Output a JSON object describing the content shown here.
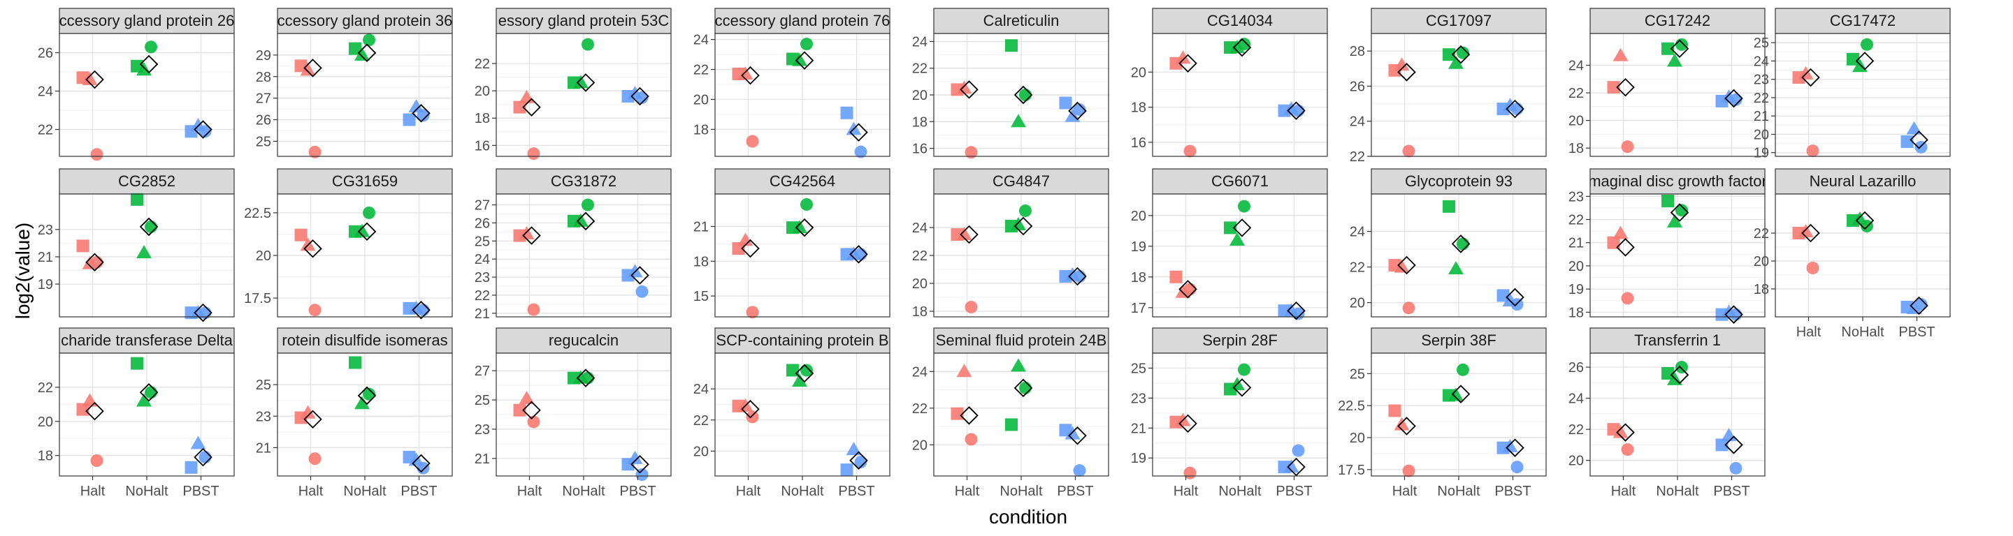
{
  "chart_data": {
    "type": "scatter",
    "xlabel": "condition",
    "ylabel": "log2(value)",
    "categories": [
      "Halt",
      "NoHalt",
      "PBST"
    ],
    "colors": {
      "Halt": "#F8766D",
      "NoHalt": "#00BA38",
      "PBST": "#619CFF"
    },
    "facets": [
      {
        "title": "ccessory gland protein 26",
        "yticks": [
          22,
          24,
          26
        ],
        "ylim": [
          20.6,
          27.0
        ],
        "points": {
          "Halt": [
            24.7,
            24.6,
            20.7
          ],
          "NoHalt": [
            25.3,
            25.1,
            26.3
          ],
          "PBST": [
            21.9,
            22.2,
            21.9
          ]
        },
        "means": [
          24.6,
          25.4,
          22.0
        ]
      },
      {
        "title": "ccessory gland protein 36",
        "yticks": [
          25,
          26,
          27,
          28,
          29
        ],
        "ylim": [
          24.3,
          30.0
        ],
        "points": {
          "Halt": [
            28.5,
            28.3,
            24.5
          ],
          "NoHalt": [
            29.3,
            29.0,
            29.7
          ],
          "PBST": [
            26.0,
            26.6,
            26.2
          ]
        },
        "means": [
          28.4,
          29.1,
          26.3
        ]
      },
      {
        "title": "essory gland protein 53C",
        "yticks": [
          16,
          18,
          20,
          22
        ],
        "ylim": [
          15.2,
          24.2
        ],
        "points": {
          "Halt": [
            18.8,
            19.5,
            15.4
          ],
          "NoHalt": [
            20.6,
            20.6,
            23.4
          ],
          "PBST": [
            19.6,
            19.8,
            19.5
          ]
        },
        "means": [
          18.8,
          20.6,
          19.6
        ]
      },
      {
        "title": "ccessory gland protein 76",
        "yticks": [
          18,
          20,
          22,
          24
        ],
        "ylim": [
          16.2,
          24.4
        ],
        "points": {
          "Halt": [
            21.7,
            21.7,
            17.2
          ],
          "NoHalt": [
            22.7,
            22.6,
            23.7
          ],
          "PBST": [
            19.1,
            18.0,
            16.5
          ]
        },
        "means": [
          21.6,
          22.6,
          17.8
        ]
      },
      {
        "title": "Calreticulin",
        "yticks": [
          16,
          18,
          20,
          22,
          24
        ],
        "ylim": [
          15.4,
          24.6
        ],
        "points": {
          "Halt": [
            20.4,
            20.5,
            15.7
          ],
          "NoHalt": [
            23.7,
            18.0,
            20.0
          ],
          "PBST": [
            19.4,
            18.4,
            18.9
          ]
        },
        "means": [
          20.4,
          20.0,
          18.8
        ]
      },
      {
        "title": "CG14034",
        "yticks": [
          16,
          18,
          20
        ],
        "ylim": [
          15.2,
          22.2
        ],
        "points": {
          "Halt": [
            20.5,
            20.8,
            15.5
          ],
          "NoHalt": [
            21.4,
            21.4,
            21.6
          ],
          "PBST": [
            17.8,
            17.9,
            17.8
          ]
        },
        "means": [
          20.5,
          21.4,
          17.8
        ]
      },
      {
        "title": "CG17097",
        "yticks": [
          22,
          24,
          26,
          28
        ],
        "ylim": [
          22.0,
          29.0
        ],
        "points": {
          "Halt": [
            26.9,
            27.2,
            22.3
          ],
          "NoHalt": [
            27.8,
            27.3,
            27.9
          ],
          "PBST": [
            24.7,
            24.9,
            24.7
          ]
        },
        "means": [
          26.8,
          27.8,
          24.7
        ]
      },
      {
        "title": "CG17242",
        "yticks": [
          18,
          20,
          22,
          24
        ],
        "ylim": [
          17.4,
          26.3
        ],
        "points": {
          "Halt": [
            22.4,
            24.7,
            18.1
          ],
          "NoHalt": [
            25.2,
            24.3,
            25.5
          ],
          "PBST": [
            21.4,
            21.7,
            21.5
          ]
        },
        "means": [
          22.4,
          25.2,
          21.6
        ]
      },
      {
        "title": "CG17472",
        "yticks": [
          19,
          20,
          21,
          22,
          23,
          24,
          25
        ],
        "ylim": [
          18.8,
          25.5
        ],
        "points": {
          "Halt": [
            23.1,
            23.3,
            19.1
          ],
          "NoHalt": [
            24.1,
            23.7,
            24.9
          ],
          "PBST": [
            19.6,
            20.3,
            19.3
          ]
        },
        "means": [
          23.1,
          24.0,
          19.7
        ]
      },
      {
        "title": "CG2852",
        "yticks": [
          19,
          21,
          23
        ],
        "ylim": [
          16.6,
          25.6
        ],
        "points": {
          "Halt": [
            21.8,
            20.5,
            20.6
          ],
          "NoHalt": [
            25.2,
            21.3,
            23.2
          ],
          "PBST": [
            16.9,
            16.9,
            16.9
          ]
        },
        "means": [
          20.6,
          23.2,
          16.9
        ]
      },
      {
        "title": "CG31659",
        "yticks": [
          17.5,
          20.0,
          22.5
        ],
        "ylim": [
          16.4,
          23.6
        ],
        "points": {
          "Halt": [
            21.2,
            20.6,
            16.8
          ],
          "NoHalt": [
            21.4,
            21.4,
            22.5
          ],
          "PBST": [
            16.9,
            16.9,
            16.8
          ]
        },
        "means": [
          20.4,
          21.4,
          16.8
        ]
      },
      {
        "title": "CG31872",
        "yticks": [
          21,
          22,
          23,
          24,
          25,
          26,
          27
        ],
        "ylim": [
          20.8,
          27.6
        ],
        "points": {
          "Halt": [
            25.3,
            25.4,
            21.2
          ],
          "NoHalt": [
            26.1,
            26.1,
            27.0
          ],
          "PBST": [
            23.1,
            23.3,
            22.2
          ]
        },
        "means": [
          25.3,
          26.1,
          23.1
        ]
      },
      {
        "title": "CG42564",
        "yticks": [
          15,
          18,
          21
        ],
        "ylim": [
          13.2,
          23.8
        ],
        "points": {
          "Halt": [
            19.1,
            19.8,
            13.6
          ],
          "NoHalt": [
            20.9,
            20.9,
            22.9
          ],
          "PBST": [
            18.6,
            18.6,
            18.6
          ]
        },
        "means": [
          19.1,
          20.9,
          18.6
        ]
      },
      {
        "title": "CG4847",
        "yticks": [
          18,
          20,
          22,
          24
        ],
        "ylim": [
          17.6,
          26.4
        ],
        "points": {
          "Halt": [
            23.5,
            23.5,
            18.3
          ],
          "NoHalt": [
            24.1,
            24.2,
            25.2
          ],
          "PBST": [
            20.5,
            20.6,
            20.5
          ]
        },
        "means": [
          23.5,
          24.1,
          20.5
        ]
      },
      {
        "title": "CG6071",
        "yticks": [
          17,
          18,
          19,
          20
        ],
        "ylim": [
          16.7,
          20.7
        ],
        "points": {
          "Halt": [
            18.0,
            17.5,
            17.6
          ],
          "NoHalt": [
            19.6,
            19.2,
            20.3
          ],
          "PBST": [
            16.9,
            16.9,
            16.8
          ]
        },
        "means": [
          17.6,
          19.6,
          16.9
        ]
      },
      {
        "title": "Glycoprotein 93",
        "yticks": [
          20,
          22,
          24
        ],
        "ylim": [
          19.2,
          26.1
        ],
        "points": {
          "Halt": [
            22.1,
            22.0,
            19.7
          ],
          "NoHalt": [
            25.4,
            21.9,
            23.3
          ],
          "PBST": [
            20.4,
            20.1,
            19.9
          ]
        },
        "means": [
          22.1,
          23.3,
          20.3
        ]
      },
      {
        "title": "maginal disc growth factor",
        "yticks": [
          18,
          19,
          20,
          21,
          22,
          23
        ],
        "ylim": [
          17.8,
          23.1
        ],
        "points": {
          "Halt": [
            21.0,
            21.4,
            18.6
          ],
          "NoHalt": [
            22.8,
            21.9,
            22.4
          ],
          "PBST": [
            17.9,
            18.0,
            17.9
          ]
        },
        "means": [
          20.8,
          22.3,
          17.9
        ]
      },
      {
        "title": "Neural Lazarillo",
        "yticks": [
          18,
          20,
          22
        ],
        "ylim": [
          16.0,
          24.8
        ],
        "points": {
          "Halt": [
            22.0,
            22.1,
            19.5
          ],
          "NoHalt": [
            22.9,
            23.0,
            22.5
          ],
          "PBST": [
            16.7,
            16.6,
            16.9
          ]
        },
        "means": [
          22.0,
          22.9,
          16.8
        ]
      },
      {
        "title": "charide transferase Delta",
        "yticks": [
          18,
          20,
          22
        ],
        "ylim": [
          16.8,
          24.0
        ],
        "points": {
          "Halt": [
            20.7,
            21.2,
            17.7
          ],
          "NoHalt": [
            23.4,
            21.2,
            21.7
          ],
          "PBST": [
            17.3,
            18.7,
            17.9
          ]
        },
        "means": [
          20.6,
          21.7,
          17.9
        ]
      },
      {
        "title": "rotein disulfide isomeras",
        "yticks": [
          21,
          23,
          25
        ],
        "ylim": [
          19.2,
          27.0
        ],
        "points": {
          "Halt": [
            22.9,
            23.2,
            20.3
          ],
          "NoHalt": [
            26.4,
            23.8,
            24.4
          ],
          "PBST": [
            20.4,
            20.2,
            19.7
          ]
        },
        "means": [
          22.8,
          24.3,
          20.0
        ]
      },
      {
        "title": "regucalcin",
        "yticks": [
          21,
          23,
          25,
          27
        ],
        "ylim": [
          19.8,
          28.2
        ],
        "points": {
          "Halt": [
            24.3,
            25.1,
            23.5
          ],
          "NoHalt": [
            26.5,
            26.5,
            26.5
          ],
          "PBST": [
            20.6,
            21.0,
            19.7
          ]
        },
        "means": [
          24.3,
          26.5,
          20.6
        ]
      },
      {
        "title": "SCP-containing protein B",
        "yticks": [
          20,
          22,
          24
        ],
        "ylim": [
          18.4,
          26.3
        ],
        "points": {
          "Halt": [
            22.9,
            22.9,
            22.2
          ],
          "NoHalt": [
            25.2,
            24.5,
            25.2
          ],
          "PBST": [
            18.8,
            20.1,
            19.3
          ]
        },
        "means": [
          22.7,
          25.0,
          19.4
        ]
      },
      {
        "title": "Seminal fluid protein 24B",
        "yticks": [
          20,
          22,
          24
        ],
        "ylim": [
          18.3,
          25.0
        ],
        "points": {
          "Halt": [
            21.7,
            24.0,
            20.3
          ],
          "NoHalt": [
            21.1,
            24.3,
            23.1
          ],
          "PBST": [
            20.8,
            20.6,
            18.6
          ]
        },
        "means": [
          21.6,
          23.1,
          20.5
        ]
      },
      {
        "title": "Serpin 28F",
        "yticks": [
          19,
          21,
          23,
          25
        ],
        "ylim": [
          17.8,
          26.0
        ],
        "points": {
          "Halt": [
            21.4,
            21.5,
            18.0
          ],
          "NoHalt": [
            23.6,
            23.9,
            24.9
          ],
          "PBST": [
            18.4,
            18.4,
            19.5
          ]
        },
        "means": [
          21.3,
          23.7,
          18.4
        ]
      },
      {
        "title": "Serpin 38F",
        "yticks": [
          17.5,
          20.0,
          22.5,
          25.0
        ],
        "ylim": [
          17.0,
          26.6
        ],
        "points": {
          "Halt": [
            22.1,
            21.0,
            17.4
          ],
          "NoHalt": [
            23.3,
            23.3,
            25.3
          ],
          "PBST": [
            19.2,
            19.3,
            17.7
          ]
        },
        "means": [
          20.9,
          23.4,
          19.2
        ]
      },
      {
        "title": "Transferrin 1",
        "yticks": [
          20,
          22,
          24,
          26
        ],
        "ylim": [
          19.0,
          26.9
        ],
        "points": {
          "Halt": [
            22.0,
            21.8,
            20.7
          ],
          "NoHalt": [
            25.6,
            25.2,
            26.0
          ],
          "PBST": [
            21.0,
            21.6,
            19.5
          ]
        },
        "means": [
          21.8,
          25.5,
          21.0
        ]
      }
    ]
  }
}
